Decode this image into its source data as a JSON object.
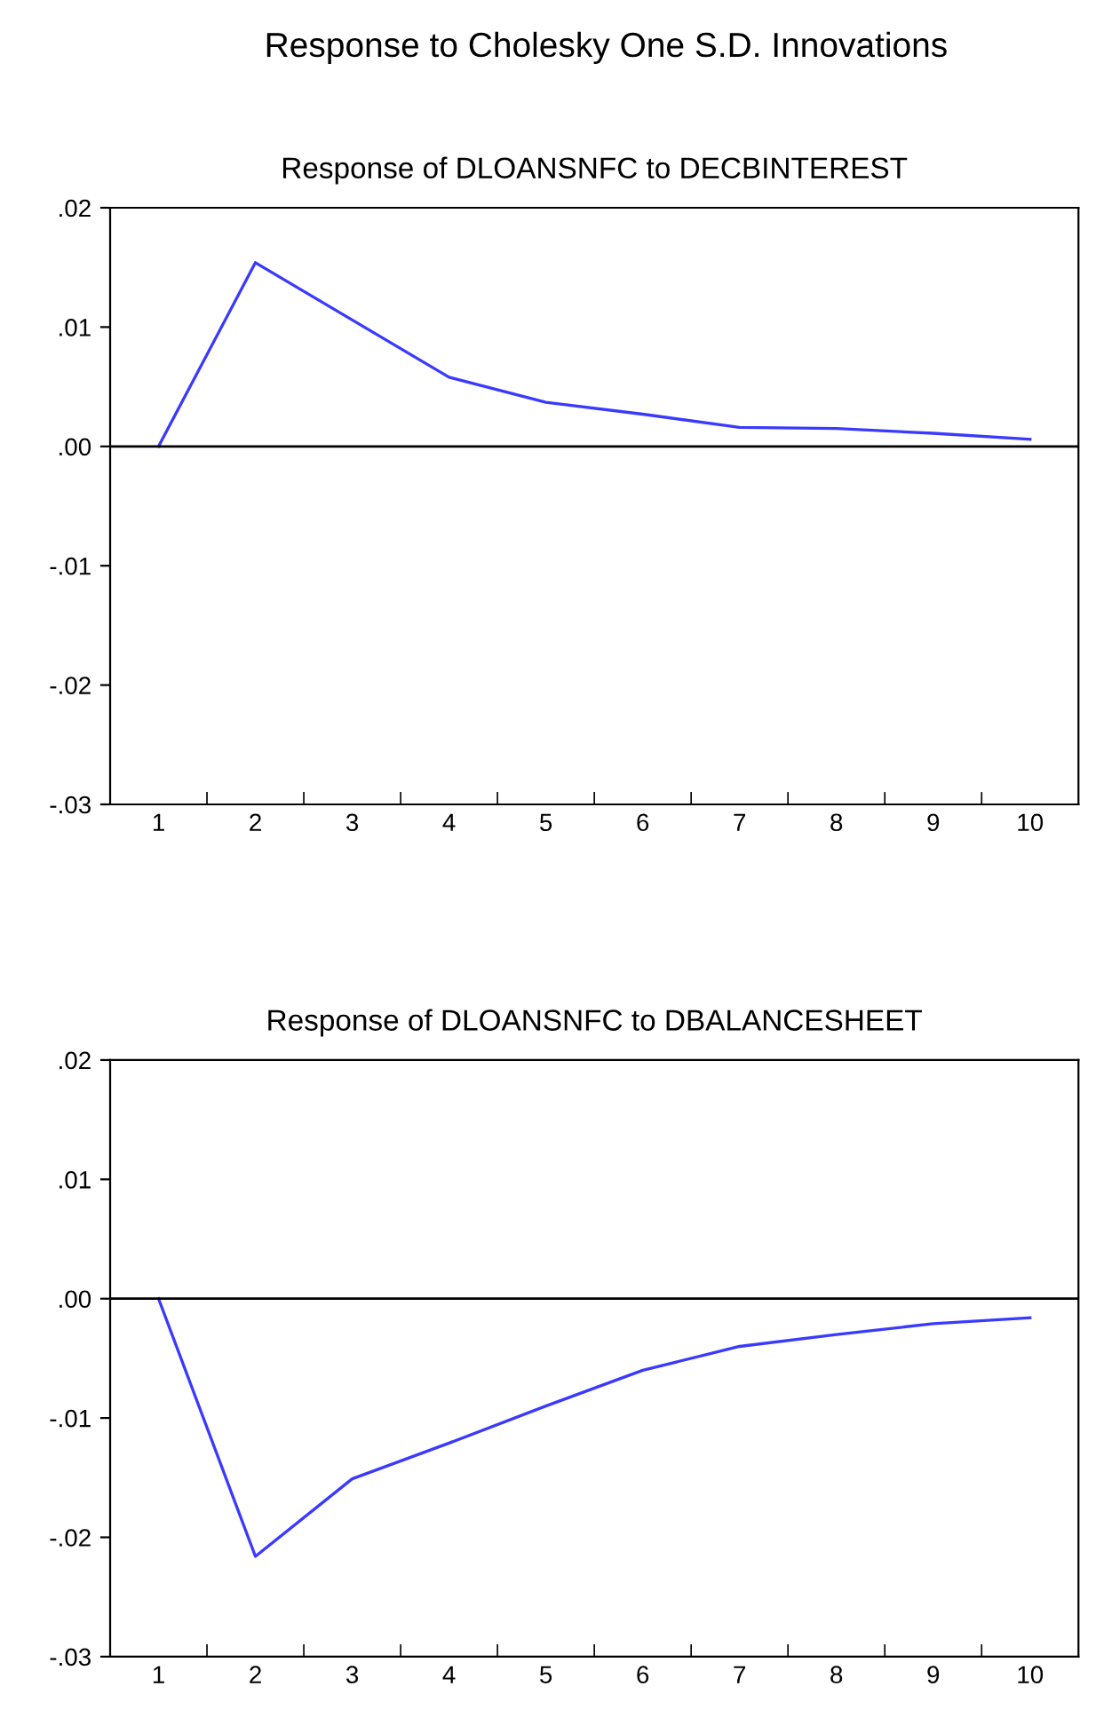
{
  "chart_data": [
    {
      "type": "line",
      "title": "Response to Cholesky One S.D. Innovations",
      "subtitle": "Response of DLOANSNFC to DECBINTEREST",
      "categories": [
        "1",
        "2",
        "3",
        "4",
        "5",
        "6",
        "7",
        "8",
        "9",
        "10"
      ],
      "series": [
        {
          "color": "#3a3aff",
          "values": [
            0.0,
            0.0154,
            0.0106,
            0.0058,
            0.0037,
            0.0027,
            0.0016,
            0.0015,
            0.0011,
            0.0006
          ]
        }
      ],
      "ylim": [
        -0.03,
        0.02
      ],
      "yticks": [
        {
          "value": -0.03,
          "label": "-.03"
        },
        {
          "value": -0.02,
          "label": "-.02"
        },
        {
          "value": -0.01,
          "label": "-.01"
        },
        {
          "value": 0,
          "label": ".00"
        },
        {
          "value": 0.01,
          "label": ".01"
        },
        {
          "value": 0.02,
          "label": ".02"
        }
      ],
      "ref_lines": [
        {
          "axis": "y",
          "value": 0,
          "color": "#000000"
        }
      ],
      "grid": false,
      "legend": false
    },
    {
      "type": "line",
      "title": "Response of DLOANSNFC to DBALANCESHEET",
      "categories": [
        "1",
        "2",
        "3",
        "4",
        "5",
        "6",
        "7",
        "8",
        "9",
        "10"
      ],
      "series": [
        {
          "color": "#3a3aff",
          "values": [
            0.0,
            -0.0216,
            -0.0151,
            -0.0121,
            -0.009,
            -0.006,
            -0.004,
            -0.003,
            -0.0021,
            -0.0016
          ]
        }
      ],
      "ylim": [
        -0.03,
        0.02
      ],
      "yticks": [
        {
          "value": -0.03,
          "label": "-.03"
        },
        {
          "value": -0.02,
          "label": "-.02"
        },
        {
          "value": -0.01,
          "label": "-.01"
        },
        {
          "value": 0,
          "label": ".00"
        },
        {
          "value": 0.01,
          "label": ".01"
        },
        {
          "value": 0.02,
          "label": ".02"
        }
      ],
      "ref_lines": [
        {
          "axis": "y",
          "value": 0,
          "color": "#000000"
        }
      ],
      "grid": false,
      "legend": false
    }
  ]
}
